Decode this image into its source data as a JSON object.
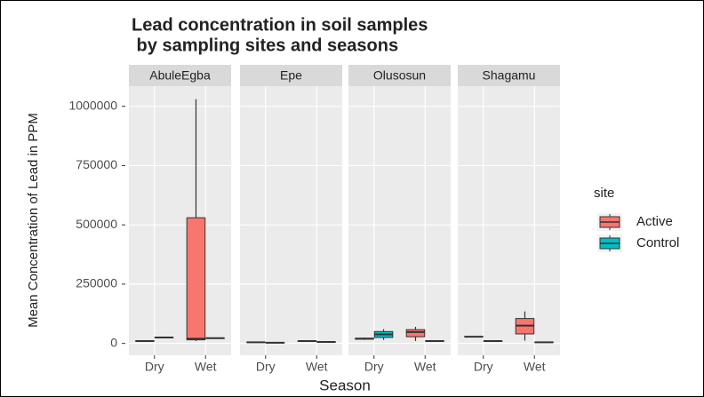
{
  "chart_data": {
    "type": "box",
    "title": [
      "Lead concentration in soil samples",
      " by sampling sites and seasons"
    ],
    "xlabel": "Season",
    "ylabel": "Mean Concentration of Lead in PPM",
    "facets": [
      "AbuleEgba",
      "Epe",
      "Olusosun",
      "Shagamu"
    ],
    "categories": [
      "Dry",
      "Wet"
    ],
    "legend_title": "site",
    "legend_position": "right",
    "grid": true,
    "ylim": [
      -50000,
      1085000
    ],
    "yticks": [
      0,
      250000,
      500000,
      750000,
      1000000
    ],
    "series": [
      {
        "name": "Active",
        "color": "#f8766d",
        "facets": [
          [
            {
              "min": 8000,
              "q1": 9000,
              "median": 10000,
              "q3": 11000,
              "max": 12000
            },
            {
              "min": 10000,
              "q1": 15000,
              "median": 20000,
              "q3": 530000,
              "max": 1030000
            }
          ],
          [
            {
              "min": 4000,
              "q1": 4500,
              "median": 5000,
              "q3": 5500,
              "max": 6000
            },
            {
              "min": 8000,
              "q1": 9000,
              "median": 10000,
              "q3": 11000,
              "max": 12000
            }
          ],
          [
            {
              "min": 15000,
              "q1": 18000,
              "median": 20000,
              "q3": 22000,
              "max": 25000
            },
            {
              "min": 10000,
              "q1": 28000,
              "median": 48000,
              "q3": 58000,
              "max": 70000
            }
          ],
          [
            {
              "min": 26000,
              "q1": 27000,
              "median": 28000,
              "q3": 29000,
              "max": 30000
            },
            {
              "min": 12000,
              "q1": 40000,
              "median": 75000,
              "q3": 105000,
              "max": 135000
            }
          ]
        ]
      },
      {
        "name": "Control",
        "color": "#00bfc4",
        "facets": [
          [
            {
              "min": 23000,
              "q1": 24000,
              "median": 25000,
              "q3": 26000,
              "max": 27000
            },
            {
              "min": 20000,
              "q1": 21000,
              "median": 22000,
              "q3": 23000,
              "max": 24000
            }
          ],
          [
            {
              "min": 2000,
              "q1": 2500,
              "median": 3000,
              "q3": 3500,
              "max": 4000
            },
            {
              "min": 5000,
              "q1": 5500,
              "median": 6000,
              "q3": 6500,
              "max": 7000
            }
          ],
          [
            {
              "min": 15000,
              "q1": 25000,
              "median": 38000,
              "q3": 50000,
              "max": 60000
            },
            {
              "min": 8000,
              "q1": 9000,
              "median": 10000,
              "q3": 11000,
              "max": 12000
            }
          ],
          [
            {
              "min": 8000,
              "q1": 9000,
              "median": 10000,
              "q3": 11000,
              "max": 12000
            },
            {
              "min": 4000,
              "q1": 4500,
              "median": 5000,
              "q3": 5500,
              "max": 6000
            }
          ]
        ]
      }
    ]
  }
}
